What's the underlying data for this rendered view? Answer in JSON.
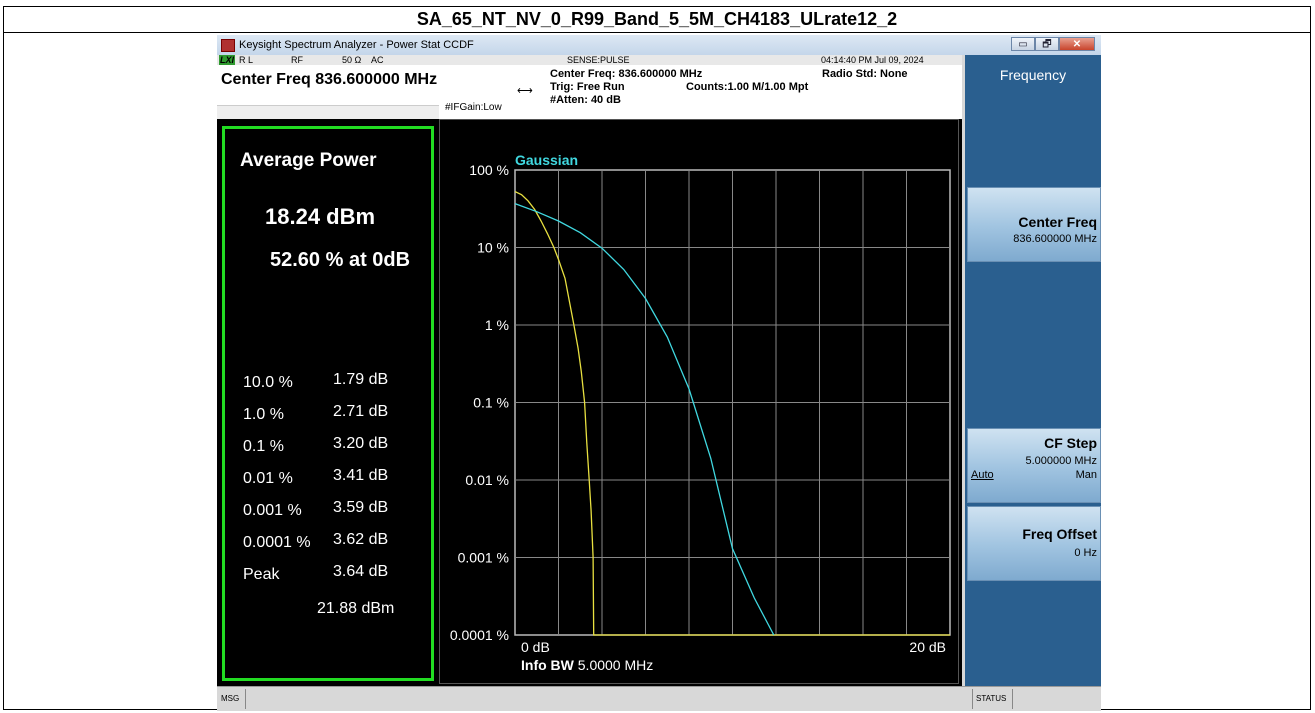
{
  "document_title": "SA_65_NT_NV_0_R99_Band_5_5M_CH4183_ULrate12_2",
  "window": {
    "title": "Keysight Spectrum Analyzer - Power Stat CCDF",
    "controls": [
      "▭",
      "🗗",
      "✕"
    ]
  },
  "statusbar": {
    "lxi": "LXI",
    "rl": "R L",
    "rf": "RF",
    "impedance": "50 Ω",
    "coupling": "AC",
    "sense": "SENSE:PULSE",
    "datetime": "04:14:40 PM Jul 09, 2024"
  },
  "header": {
    "center_freq_big": "Center Freq 836.600000 MHz",
    "center_freq": "Center Freq: 836.600000 MHz",
    "trig": "Trig: Free Run",
    "counts": "Counts:1.00 M/1.00 Mpt",
    "atten": "#Atten: 40 dB",
    "radio_std": "Radio Std: None",
    "ifgain": "#IFGain:Low"
  },
  "metrics": {
    "average_power_label": "Average Power",
    "average_power": "18.24 dBm",
    "at_0db": "52.60 % at 0dB",
    "rows": [
      {
        "pct": "10.0 %",
        "db": "1.79 dB"
      },
      {
        "pct": "1.0 %",
        "db": "2.71 dB"
      },
      {
        "pct": "0.1 %",
        "db": "3.20 dB"
      },
      {
        "pct": "0.01 %",
        "db": "3.41 dB"
      },
      {
        "pct": "0.001 %",
        "db": "3.59 dB"
      },
      {
        "pct": "0.0001 %",
        "db": "3.62 dB"
      },
      {
        "pct": "Peak",
        "db": "3.64 dB"
      }
    ],
    "peak_dbm": "21.88 dBm"
  },
  "sidebar": {
    "title": "Frequency",
    "center_freq_label": "Center Freq",
    "center_freq_value": "836.600000 MHz",
    "cf_step_label": "CF Step",
    "cf_step_value": "5.000000 MHz",
    "cf_step_auto": "Auto",
    "cf_step_man": "Man",
    "freq_offset_label": "Freq Offset",
    "freq_offset_value": "0 Hz"
  },
  "msgbar": {
    "msg": "MSG",
    "status": "STATUS"
  },
  "colors": {
    "measured": "#e8e040",
    "gaussian": "#40d8e0",
    "grid": "#888888",
    "metrics_border": "#22dd22",
    "sidebar_bg": "#2a5f8f"
  },
  "chart_data": {
    "type": "line",
    "title": "Gaussian",
    "y_scale": "log",
    "y_ticks": [
      "100 %",
      "10 %",
      "1 %",
      "0.1 %",
      "0.01 %",
      "0.001 %",
      "0.0001 %"
    ],
    "x_ticks": [
      "0 dB",
      "20 dB"
    ],
    "xlim": [
      0,
      20
    ],
    "ylim": [
      0.0001,
      100
    ],
    "info_bw_label": "Info BW",
    "info_bw_value": "5.0000 MHz",
    "grid": true,
    "series": [
      {
        "color_key": "measured",
        "x": [
          0,
          0.3,
          0.6,
          0.9,
          1.2,
          1.5,
          1.79,
          2.0,
          2.3,
          2.71,
          2.9,
          3.05,
          3.2,
          3.3,
          3.41,
          3.5,
          3.59,
          3.62,
          3.64,
          20
        ],
        "y": [
          52.6,
          48,
          40,
          31,
          22,
          15,
          10,
          7,
          4,
          1,
          0.5,
          0.25,
          0.1,
          0.03,
          0.01,
          0.004,
          0.001,
          0.0001,
          0.0001,
          0.0001
        ]
      },
      {
        "name": "Gaussian",
        "color_key": "gaussian",
        "x": [
          0,
          1,
          2,
          3,
          4,
          5,
          6,
          7,
          8,
          9,
          10,
          11,
          11.9
        ],
        "y": [
          36.8,
          29,
          22,
          15.5,
          9.8,
          5.2,
          2.2,
          0.7,
          0.15,
          0.019,
          0.0013,
          0.0003,
          0.0001
        ]
      }
    ]
  }
}
